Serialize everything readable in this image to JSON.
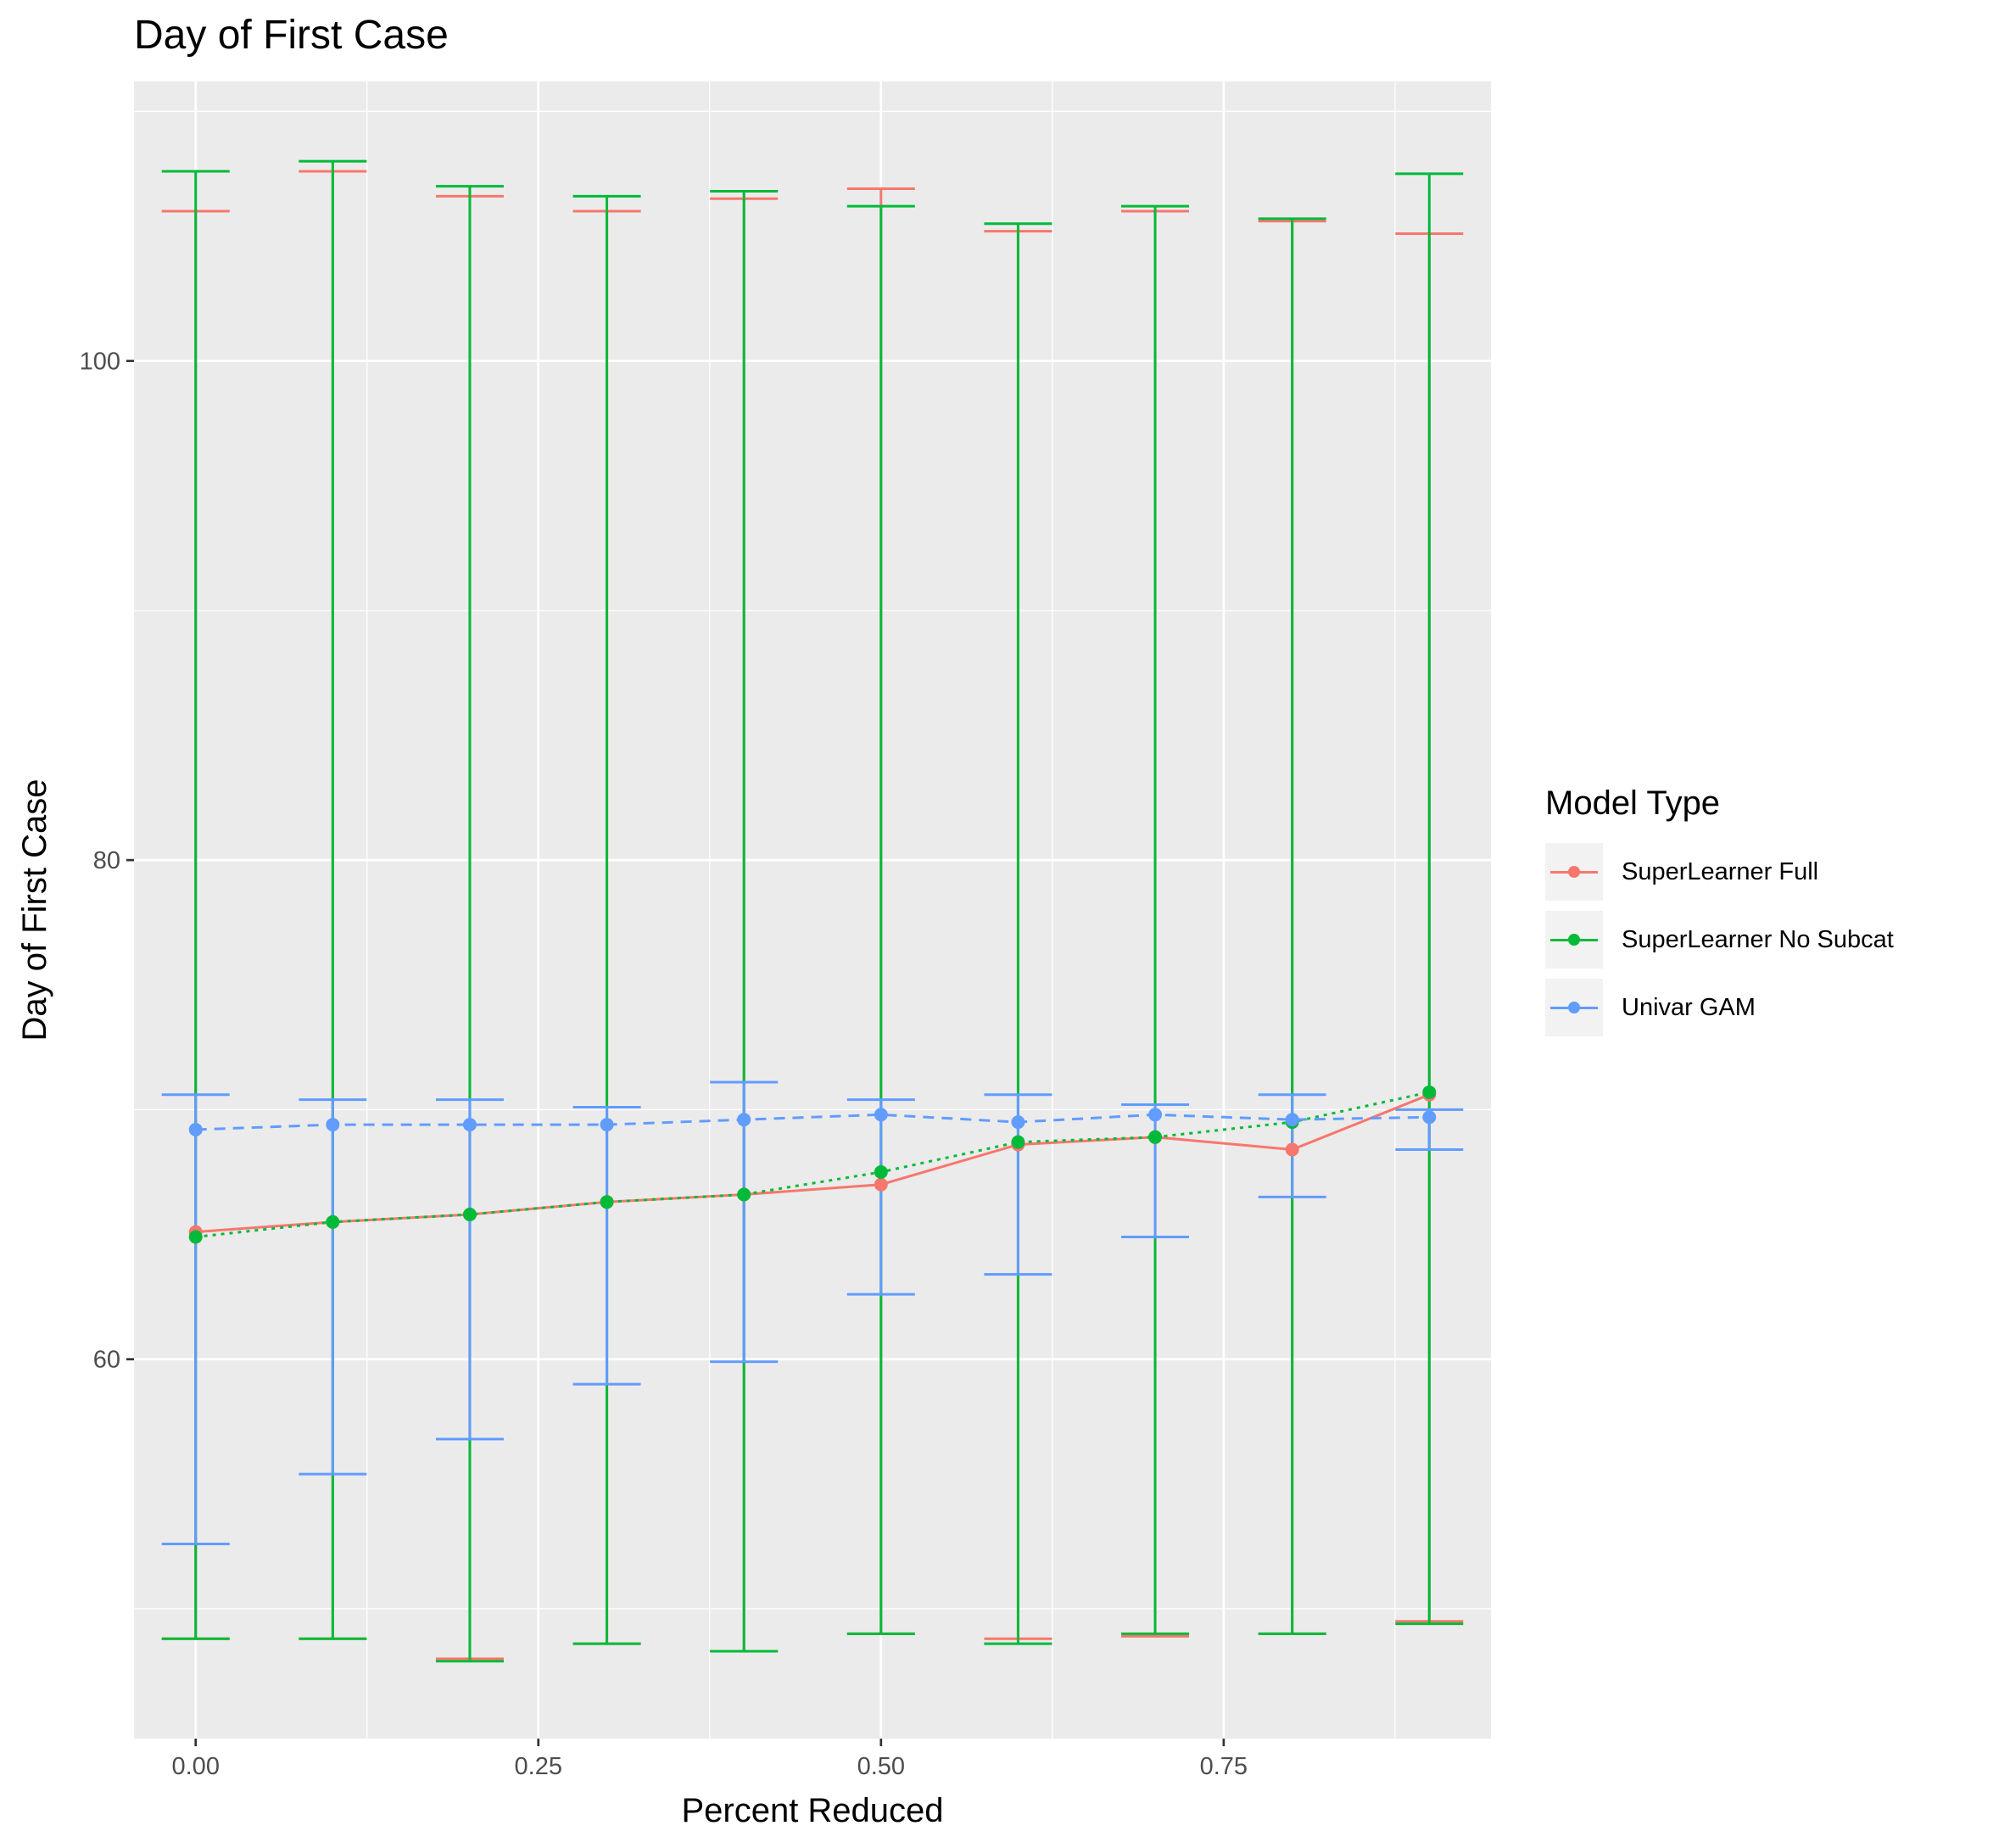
{
  "chart_data": {
    "type": "line",
    "title": "Day of First Case",
    "xlabel": "Percent Reduced",
    "ylabel": "Day of First Case",
    "xlim": [
      -0.045,
      0.945
    ],
    "ylim": [
      44.8,
      111.2
    ],
    "x_ticks": [
      0.0,
      0.25,
      0.5,
      0.75
    ],
    "x_tick_labels": [
      "0.00",
      "0.25",
      "0.50",
      "0.75"
    ],
    "y_ticks": [
      60,
      80,
      100
    ],
    "y_tick_labels": [
      "60",
      "80",
      "100"
    ],
    "grid": true,
    "legend_title": "Model Type",
    "legend_position": "right",
    "x": [
      0.0,
      0.1,
      0.2,
      0.3,
      0.4,
      0.5,
      0.6,
      0.7,
      0.8,
      0.9
    ],
    "series": [
      {
        "name": "SuperLearner Full",
        "color": "#F8766D",
        "linestyle": "solid",
        "values": [
          65.1,
          65.5,
          65.8,
          66.3,
          66.6,
          67.0,
          68.6,
          68.9,
          68.4,
          70.6
        ],
        "lower": [
          48.8,
          48.8,
          48.0,
          48.6,
          48.3,
          49.0,
          48.8,
          48.9,
          49.0,
          49.5
        ],
        "upper": [
          106.0,
          107.6,
          106.6,
          106.0,
          106.5,
          106.9,
          105.2,
          106.0,
          105.6,
          105.1
        ]
      },
      {
        "name": "SuperLearner No Subcat",
        "color": "#00BA38",
        "linestyle": "dotted",
        "values": [
          64.9,
          65.5,
          65.8,
          66.3,
          66.6,
          67.5,
          68.7,
          68.9,
          69.5,
          70.7
        ],
        "lower": [
          48.8,
          48.8,
          47.9,
          48.6,
          48.3,
          49.0,
          48.6,
          49.0,
          49.0,
          49.4
        ],
        "upper": [
          107.6,
          108.0,
          107.0,
          106.6,
          106.8,
          106.2,
          105.5,
          106.2,
          105.7,
          107.5
        ]
      },
      {
        "name": "Univar GAM",
        "color": "#619CFF",
        "linestyle": "dashed",
        "values": [
          69.2,
          69.4,
          69.4,
          69.4,
          69.6,
          69.8,
          69.5,
          69.8,
          69.6,
          69.7
        ],
        "lower": [
          52.6,
          55.4,
          56.8,
          59.0,
          59.9,
          62.6,
          63.4,
          64.9,
          66.5,
          68.4
        ],
        "upper": [
          70.6,
          70.4,
          70.4,
          70.1,
          71.1,
          70.4,
          70.6,
          70.2,
          70.6,
          70.0
        ]
      }
    ]
  }
}
